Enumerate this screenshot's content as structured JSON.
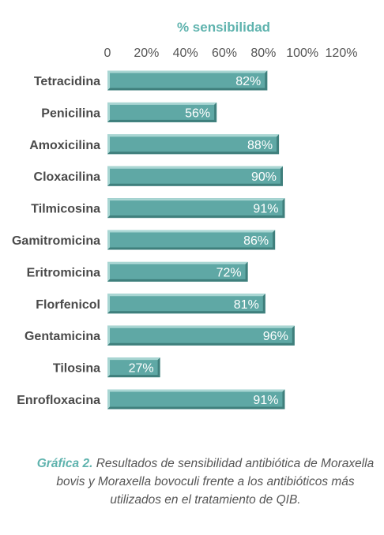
{
  "chart_data": {
    "type": "bar",
    "orientation": "horizontal",
    "title": "% sensibilidad",
    "categories": [
      "Tetracidina",
      "Penicilina",
      "Amoxicilina",
      "Cloxacilina",
      "Tilmicosina",
      "Gamitromicina",
      "Eritromicina",
      "Florfenicol",
      "Gentamicina",
      "Tilosina",
      "Enrofloxacina"
    ],
    "values": [
      82,
      56,
      88,
      90,
      91,
      86,
      72,
      81,
      96,
      27,
      91
    ],
    "value_labels": [
      "82%",
      "56%",
      "88%",
      "90%",
      "91%",
      "86%",
      "72%",
      "81%",
      "96%",
      "27%",
      "91%"
    ],
    "xlim": [
      0,
      120
    ],
    "x_ticks": [
      "0",
      "20%",
      "40%",
      "60%",
      "80%",
      "100%",
      "120%"
    ],
    "legend": "none",
    "grid": false,
    "bar_color": "#5fa8a5"
  },
  "caption": {
    "label": "Gráfica 2.",
    "text": "Resultados de sensibilidad antibiótica de Moraxella bovis y Moraxella bovoculi frente a los antibióticos más utilizados en el tratamiento de QIB."
  }
}
